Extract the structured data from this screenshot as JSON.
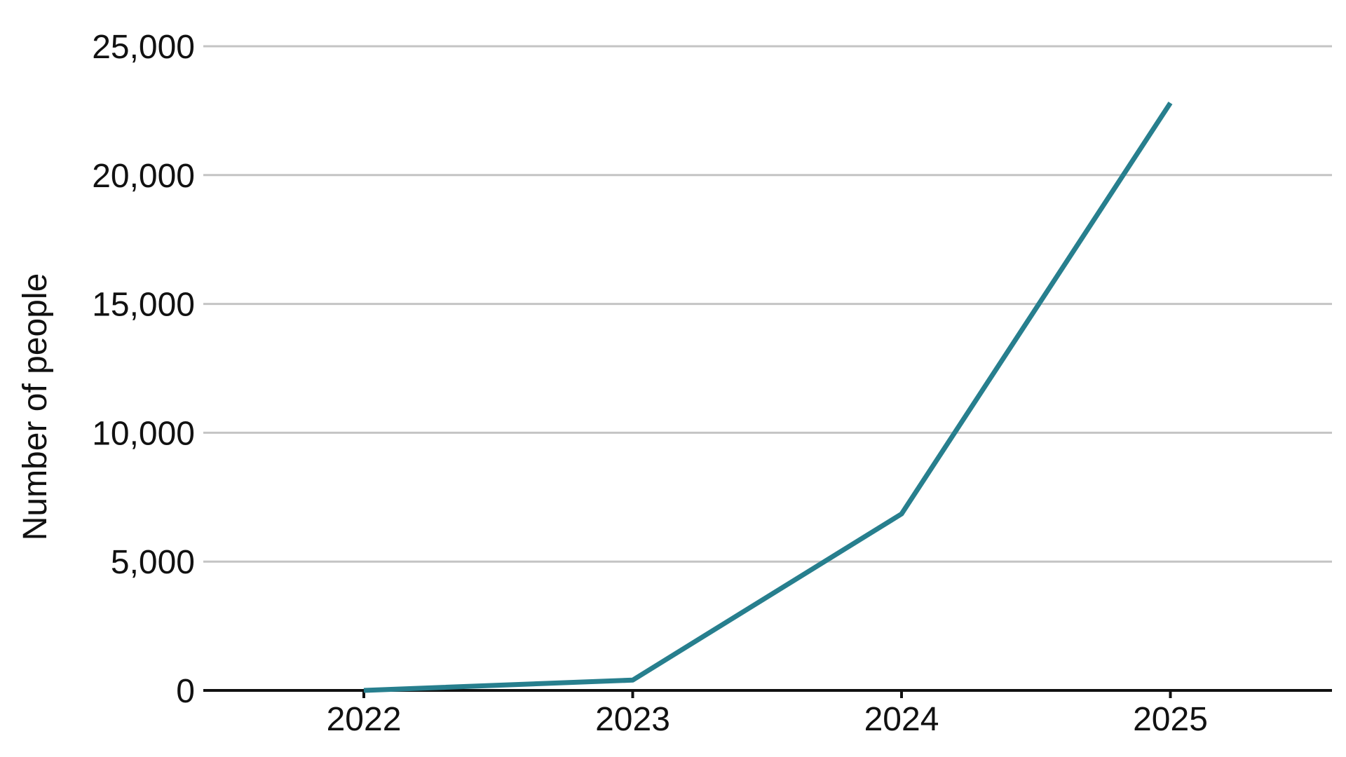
{
  "chart_data": {
    "type": "line",
    "title": "",
    "xlabel": "",
    "ylabel": "Number of people",
    "x": [
      "2022",
      "2023",
      "2024",
      "2025"
    ],
    "series": [
      {
        "values": [
          0,
          400,
          6850,
          22800
        ],
        "color": "#277f8e"
      }
    ],
    "ylim": [
      0,
      25000
    ],
    "y_ticks": [
      0,
      5000,
      10000,
      15000,
      20000,
      25000
    ],
    "y_tick_labels": [
      "0",
      "5,000",
      "10,000",
      "15,000",
      "20,000",
      "25,000"
    ],
    "grid": "horizontal",
    "gridline_color": "#c4c4c4",
    "axis_color": "#111111"
  }
}
